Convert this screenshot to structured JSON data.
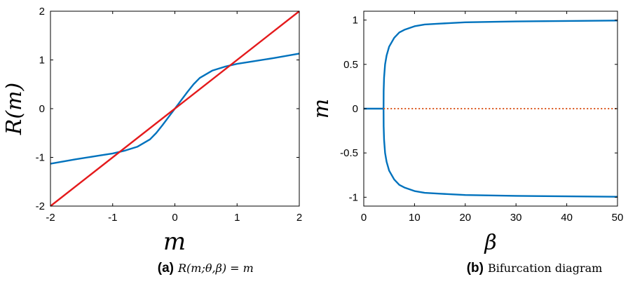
{
  "chart_data": [
    {
      "type": "line",
      "panel": "a",
      "caption_label": "(a)",
      "caption_text": "R(m;θ,β) = m",
      "xlabel": "m",
      "ylabel": "R(m)",
      "xlim": [
        -2,
        2
      ],
      "ylim": [
        -2,
        2
      ],
      "xticks": [
        -2,
        -1,
        0,
        1,
        2
      ],
      "yticks": [
        -2,
        -1,
        0,
        1,
        2
      ],
      "xtick_labels": [
        "-2",
        "-1",
        "0",
        "1",
        "2"
      ],
      "ytick_labels": [
        "-2",
        "-1",
        "0",
        "1",
        "2"
      ],
      "grid": false,
      "series": [
        {
          "color": "#0072BD",
          "x": [
            -2,
            -1.6,
            -1.2,
            -1.0,
            -0.8,
            -0.6,
            -0.4,
            -0.3,
            -0.2,
            -0.1,
            0,
            0.1,
            0.2,
            0.3,
            0.4,
            0.6,
            0.8,
            1.0,
            1.2,
            1.6,
            2
          ],
          "y": [
            -1.13,
            -1.04,
            -0.96,
            -0.92,
            -0.86,
            -0.78,
            -0.63,
            -0.5,
            -0.34,
            -0.17,
            0,
            0.17,
            0.34,
            0.5,
            0.63,
            0.78,
            0.86,
            0.92,
            0.96,
            1.04,
            1.13
          ]
        },
        {
          "color": "#E41A1C",
          "x": [
            -2,
            2
          ],
          "y": [
            -2,
            2
          ]
        }
      ]
    },
    {
      "type": "line",
      "panel": "b",
      "caption_label": "(b)",
      "caption_text": "Bifurcation diagram",
      "xlabel": "β",
      "ylabel": "m",
      "xlim": [
        0,
        50
      ],
      "ylim": [
        -1.1,
        1.1
      ],
      "xticks": [
        0,
        10,
        20,
        30,
        40,
        50
      ],
      "yticks": [
        -1,
        -0.5,
        0,
        0.5,
        1
      ],
      "xtick_labels": [
        "0",
        "10",
        "20",
        "30",
        "40",
        "50"
      ],
      "ytick_labels": [
        "-1",
        "-0.5",
        "0",
        "0.5",
        "1"
      ],
      "grid": false,
      "series": [
        {
          "color": "#0072BD",
          "style": "solid",
          "x": [
            0,
            3.9
          ],
          "y": [
            0,
            0
          ]
        },
        {
          "color": "#0072BD",
          "style": "solid",
          "x": [
            3.9,
            3.92,
            4.0,
            4.2,
            4.5,
            5,
            6,
            7,
            8,
            10,
            12,
            15,
            20,
            25,
            30,
            40,
            50
          ],
          "y": [
            0,
            0.2,
            0.35,
            0.5,
            0.6,
            0.7,
            0.8,
            0.86,
            0.89,
            0.93,
            0.95,
            0.96,
            0.975,
            0.98,
            0.985,
            0.99,
            0.995
          ]
        },
        {
          "color": "#0072BD",
          "style": "solid",
          "x": [
            3.9,
            3.92,
            4.0,
            4.2,
            4.5,
            5,
            6,
            7,
            8,
            10,
            12,
            15,
            20,
            25,
            30,
            40,
            50
          ],
          "y": [
            0,
            -0.2,
            -0.35,
            -0.5,
            -0.6,
            -0.7,
            -0.8,
            -0.86,
            -0.89,
            -0.93,
            -0.95,
            -0.96,
            -0.975,
            -0.98,
            -0.985,
            -0.99,
            -0.995
          ]
        },
        {
          "color": "#D95319",
          "style": "dotted",
          "x": [
            3.9,
            50
          ],
          "y": [
            0,
            0
          ]
        }
      ]
    }
  ]
}
